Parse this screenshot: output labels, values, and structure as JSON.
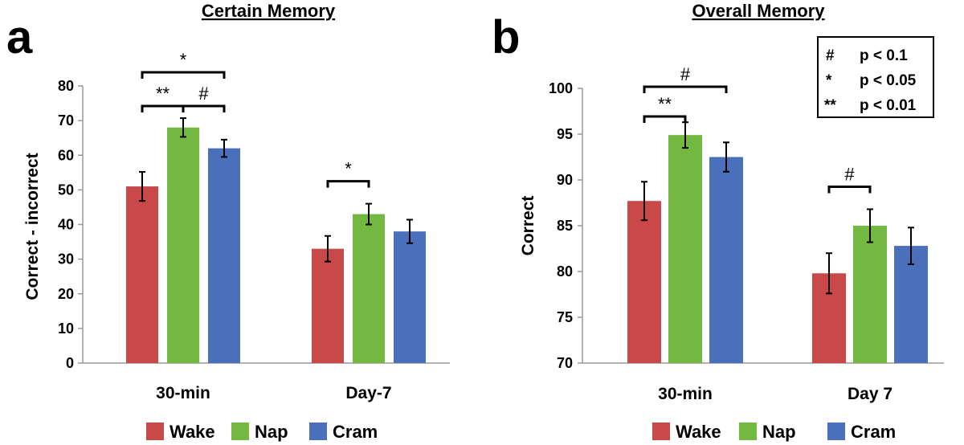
{
  "colors": {
    "wake": "#c9484a",
    "nap": "#73b840",
    "cram": "#4a70bc",
    "axis": "#999999",
    "ink": "#000000"
  },
  "legend": [
    {
      "name": "Wake",
      "color": "#c9484a"
    },
    {
      "name": "Nap",
      "color": "#73b840"
    },
    {
      "name": "Cram",
      "color": "#4a70bc"
    }
  ],
  "significance_key": [
    {
      "symbol": "#",
      "text": "p < 0.1"
    },
    {
      "symbol": "*",
      "text": "p < 0.05"
    },
    {
      "symbol": "**",
      "text": "p < 0.01"
    }
  ],
  "chart_data": [
    {
      "panel": "a",
      "type": "bar",
      "title": "Certain Memory",
      "ylabel": "Correct - incorrect",
      "xlabel": "",
      "ylim": [
        0,
        80
      ],
      "yticks": [
        0,
        10,
        20,
        30,
        40,
        50,
        60,
        70,
        80
      ],
      "categories": [
        "30-min",
        "Day-7"
      ],
      "series": [
        {
          "name": "Wake",
          "values": [
            51,
            33
          ],
          "errors": [
            4.2,
            3.7
          ]
        },
        {
          "name": "Nap",
          "values": [
            68,
            43
          ],
          "errors": [
            2.7,
            3.0
          ]
        },
        {
          "name": "Cram",
          "values": [
            62,
            38
          ],
          "errors": [
            2.5,
            3.4
          ]
        }
      ],
      "significance": [
        {
          "category": 0,
          "from": "Wake",
          "to": "Cram",
          "label": "*"
        },
        {
          "category": 0,
          "from": "Wake",
          "to": "Nap",
          "label": "**"
        },
        {
          "category": 0,
          "from": "Nap",
          "to": "Cram",
          "label": "#"
        },
        {
          "category": 1,
          "from": "Wake",
          "to": "Nap",
          "label": "*"
        }
      ],
      "grid": false
    },
    {
      "panel": "b",
      "type": "bar",
      "title": "Overall Memory",
      "ylabel": "Correct",
      "xlabel": "",
      "ylim": [
        70,
        100
      ],
      "yticks": [
        70,
        75,
        80,
        85,
        90,
        95,
        100
      ],
      "categories": [
        "30-min",
        "Day 7"
      ],
      "series": [
        {
          "name": "Wake",
          "values": [
            87.7,
            79.8
          ],
          "errors": [
            2.1,
            2.2
          ]
        },
        {
          "name": "Nap",
          "values": [
            94.9,
            85.0
          ],
          "errors": [
            1.4,
            1.8
          ]
        },
        {
          "name": "Cram",
          "values": [
            92.5,
            82.8
          ],
          "errors": [
            1.6,
            2.0
          ]
        }
      ],
      "significance": [
        {
          "category": 0,
          "from": "Wake",
          "to": "Cram",
          "label": "#"
        },
        {
          "category": 0,
          "from": "Wake",
          "to": "Nap",
          "label": "**"
        },
        {
          "category": 1,
          "from": "Wake",
          "to": "Nap",
          "label": "#"
        }
      ],
      "grid": false
    }
  ]
}
